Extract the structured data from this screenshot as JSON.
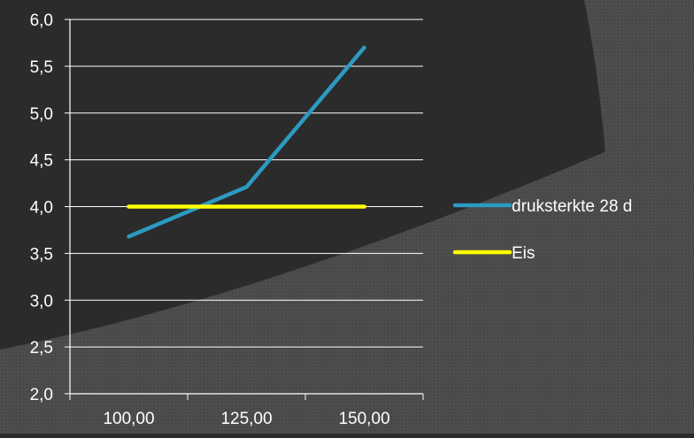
{
  "chart_data": {
    "type": "line",
    "title": "",
    "xlabel": "",
    "ylabel": "",
    "x": [
      100,
      125,
      150
    ],
    "x_tick_labels": [
      "100,00",
      "125,00",
      "150,00"
    ],
    "xlim": [
      87.5,
      162.5
    ],
    "ylim": [
      2.0,
      6.0
    ],
    "y_ticks": [
      2.0,
      2.5,
      3.0,
      3.5,
      4.0,
      4.5,
      5.0,
      5.5,
      6.0
    ],
    "y_tick_labels": [
      "2,0",
      "2,5",
      "3,0",
      "3,5",
      "4,0",
      "4,5",
      "5,0",
      "5,5",
      "6,0"
    ],
    "grid": true,
    "legend_position": "right",
    "series": [
      {
        "name": "druksterkte 28 d",
        "color": "#2c9ac1",
        "points": [
          [
            100,
            3.68
          ],
          [
            125,
            4.21
          ],
          [
            150,
            5.7
          ]
        ]
      },
      {
        "name": "Eis",
        "color": "#ffff00",
        "points": [
          [
            100,
            4.0
          ],
          [
            150,
            4.0
          ]
        ]
      }
    ]
  },
  "background": {
    "dark": "#2b2b2b",
    "light": "#4a4a4a",
    "accent": "#555555",
    "gridline": "#ffffff"
  }
}
